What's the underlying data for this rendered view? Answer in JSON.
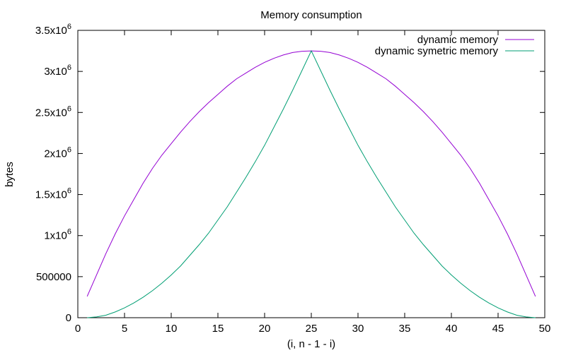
{
  "chart_data": {
    "type": "line",
    "title": "Memory consumption",
    "xlabel": "(i, n - 1 - i)",
    "ylabel": "bytes",
    "xlim": [
      0,
      50
    ],
    "ylim": [
      0,
      3500000
    ],
    "grid": false,
    "legend_position": "top-right",
    "x_ticks": [
      {
        "value": 0,
        "label": "0"
      },
      {
        "value": 5,
        "label": "5"
      },
      {
        "value": 10,
        "label": "10"
      },
      {
        "value": 15,
        "label": "15"
      },
      {
        "value": 20,
        "label": "20"
      },
      {
        "value": 25,
        "label": "25"
      },
      {
        "value": 30,
        "label": "30"
      },
      {
        "value": 35,
        "label": "35"
      },
      {
        "value": 40,
        "label": "40"
      },
      {
        "value": 45,
        "label": "45"
      },
      {
        "value": 50,
        "label": "50"
      }
    ],
    "y_ticks": [
      {
        "value": 0,
        "mantissa": "0",
        "exp": ""
      },
      {
        "value": 500000,
        "mantissa": "500000",
        "exp": ""
      },
      {
        "value": 1000000,
        "mantissa": "1x10",
        "exp": "6"
      },
      {
        "value": 1500000,
        "mantissa": "1.5x10",
        "exp": "6"
      },
      {
        "value": 2000000,
        "mantissa": "2x10",
        "exp": "6"
      },
      {
        "value": 2500000,
        "mantissa": "2.5x10",
        "exp": "6"
      },
      {
        "value": 3000000,
        "mantissa": "3x10",
        "exp": "6"
      },
      {
        "value": 3500000,
        "mantissa": "3.5x10",
        "exp": "6"
      }
    ],
    "x": [
      1,
      2,
      3,
      4,
      5,
      6,
      7,
      8,
      9,
      10,
      11,
      12,
      13,
      14,
      15,
      16,
      17,
      18,
      19,
      20,
      21,
      22,
      23,
      24,
      25,
      26,
      27,
      28,
      29,
      30,
      31,
      32,
      33,
      34,
      35,
      36,
      37,
      38,
      39,
      40,
      41,
      42,
      43,
      44,
      45,
      46,
      47,
      48,
      49
    ],
    "series": [
      {
        "name": "dynamic memory",
        "color": "#9400d3",
        "values": [
          260000,
          520000,
          780000,
          1020000,
          1240000,
          1440000,
          1640000,
          1820000,
          1980000,
          2120000,
          2260000,
          2390000,
          2510000,
          2620000,
          2720000,
          2820000,
          2910000,
          2980000,
          3050000,
          3110000,
          3160000,
          3200000,
          3230000,
          3245000,
          3250000,
          3245000,
          3230000,
          3200000,
          3160000,
          3110000,
          3050000,
          2980000,
          2910000,
          2820000,
          2720000,
          2620000,
          2510000,
          2390000,
          2260000,
          2120000,
          1980000,
          1820000,
          1640000,
          1440000,
          1240000,
          1020000,
          780000,
          520000,
          260000
        ]
      },
      {
        "name": "dynamic symetric memory",
        "color": "#009e73",
        "values": [
          0,
          10000,
          30000,
          70000,
          120000,
          180000,
          250000,
          330000,
          420000,
          520000,
          630000,
          760000,
          890000,
          1030000,
          1190000,
          1350000,
          1530000,
          1710000,
          1900000,
          2100000,
          2320000,
          2540000,
          2770000,
          3010000,
          3250000,
          3010000,
          2770000,
          2540000,
          2320000,
          2100000,
          1900000,
          1710000,
          1530000,
          1350000,
          1190000,
          1030000,
          890000,
          760000,
          630000,
          520000,
          420000,
          330000,
          250000,
          180000,
          120000,
          70000,
          30000,
          10000,
          0
        ]
      }
    ]
  }
}
